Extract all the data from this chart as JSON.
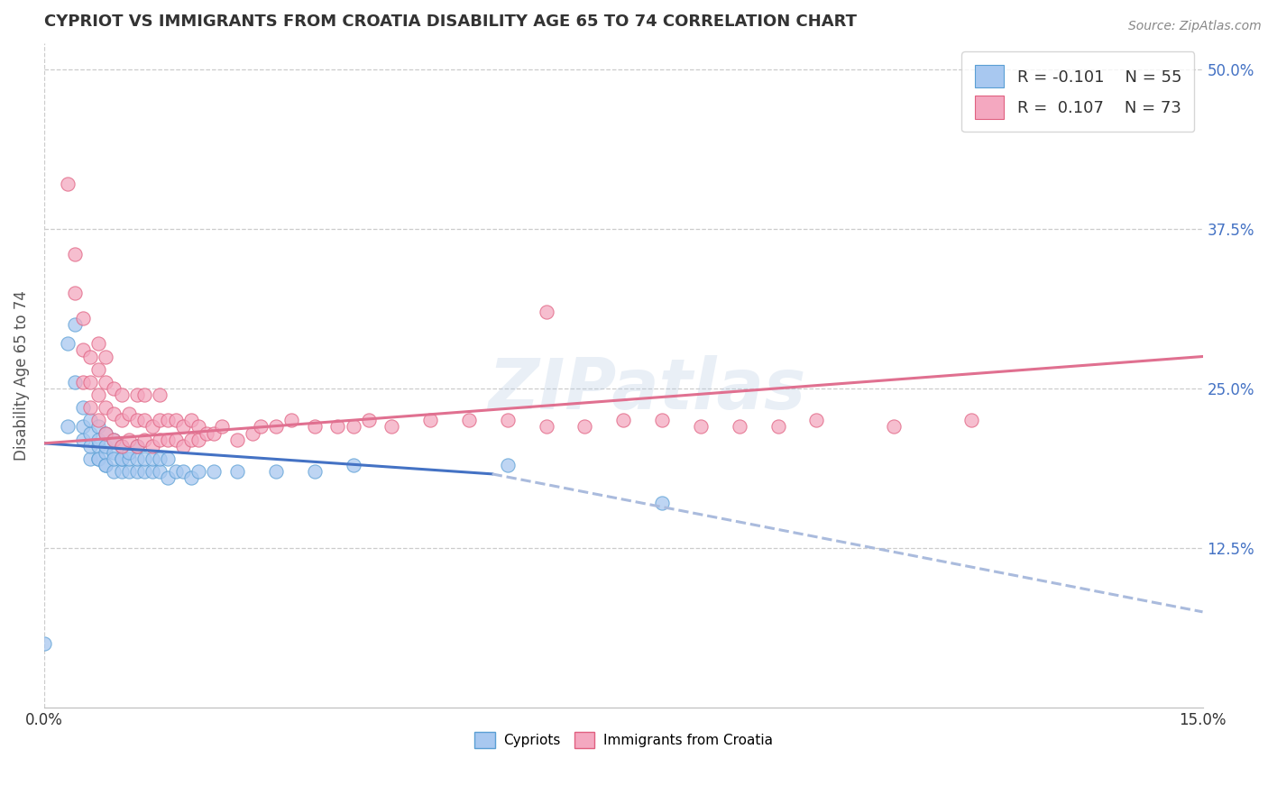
{
  "title": "CYPRIOT VS IMMIGRANTS FROM CROATIA DISABILITY AGE 65 TO 74 CORRELATION CHART",
  "source": "Source: ZipAtlas.com",
  "ylabel": "Disability Age 65 to 74",
  "xlim": [
    0.0,
    0.15
  ],
  "ylim": [
    0.0,
    0.52
  ],
  "y_ticks": [
    0.125,
    0.25,
    0.375,
    0.5
  ],
  "y_tick_labels": [
    "12.5%",
    "25.0%",
    "37.5%",
    "50.0%"
  ],
  "watermark": "ZIPatlas",
  "legend_r1": "R = -0.101",
  "legend_n1": "N = 55",
  "legend_r2": "R =  0.107",
  "legend_n2": "N = 73",
  "cypriot_color": "#a8c8f0",
  "cypriot_edge": "#5a9fd4",
  "croatia_color": "#f4a8c0",
  "croatia_edge": "#e06080",
  "trend_cypriot_color": "#4472c4",
  "trend_croatia_color": "#e07090",
  "trend_dashed_color": "#aabbdd",
  "cypriot_x": [
    0.0,
    0.003,
    0.003,
    0.004,
    0.004,
    0.005,
    0.005,
    0.005,
    0.006,
    0.006,
    0.006,
    0.006,
    0.007,
    0.007,
    0.007,
    0.007,
    0.007,
    0.008,
    0.008,
    0.008,
    0.008,
    0.008,
    0.009,
    0.009,
    0.009,
    0.009,
    0.01,
    0.01,
    0.01,
    0.01,
    0.011,
    0.011,
    0.011,
    0.012,
    0.012,
    0.012,
    0.013,
    0.013,
    0.014,
    0.014,
    0.015,
    0.015,
    0.016,
    0.016,
    0.017,
    0.018,
    0.019,
    0.02,
    0.022,
    0.025,
    0.03,
    0.035,
    0.04,
    0.06,
    0.08
  ],
  "cypriot_y": [
    0.05,
    0.22,
    0.285,
    0.3,
    0.255,
    0.21,
    0.235,
    0.22,
    0.195,
    0.215,
    0.225,
    0.205,
    0.195,
    0.205,
    0.22,
    0.21,
    0.195,
    0.19,
    0.2,
    0.215,
    0.205,
    0.19,
    0.185,
    0.2,
    0.21,
    0.195,
    0.185,
    0.195,
    0.205,
    0.195,
    0.185,
    0.195,
    0.2,
    0.185,
    0.195,
    0.205,
    0.185,
    0.195,
    0.185,
    0.195,
    0.185,
    0.195,
    0.18,
    0.195,
    0.185,
    0.185,
    0.18,
    0.185,
    0.185,
    0.185,
    0.185,
    0.185,
    0.19,
    0.19,
    0.16
  ],
  "croatia_x": [
    0.003,
    0.004,
    0.004,
    0.005,
    0.005,
    0.005,
    0.006,
    0.006,
    0.006,
    0.007,
    0.007,
    0.007,
    0.007,
    0.008,
    0.008,
    0.008,
    0.008,
    0.009,
    0.009,
    0.009,
    0.01,
    0.01,
    0.01,
    0.011,
    0.011,
    0.012,
    0.012,
    0.012,
    0.013,
    0.013,
    0.013,
    0.014,
    0.014,
    0.015,
    0.015,
    0.015,
    0.016,
    0.016,
    0.017,
    0.017,
    0.018,
    0.018,
    0.019,
    0.019,
    0.02,
    0.02,
    0.021,
    0.022,
    0.023,
    0.025,
    0.027,
    0.028,
    0.03,
    0.032,
    0.035,
    0.038,
    0.04,
    0.042,
    0.045,
    0.05,
    0.055,
    0.06,
    0.065,
    0.07,
    0.075,
    0.08,
    0.085,
    0.09,
    0.095,
    0.1,
    0.11,
    0.12,
    0.065
  ],
  "croatia_y": [
    0.41,
    0.325,
    0.355,
    0.255,
    0.28,
    0.305,
    0.235,
    0.255,
    0.275,
    0.225,
    0.245,
    0.265,
    0.285,
    0.215,
    0.235,
    0.255,
    0.275,
    0.21,
    0.23,
    0.25,
    0.205,
    0.225,
    0.245,
    0.21,
    0.23,
    0.205,
    0.225,
    0.245,
    0.21,
    0.225,
    0.245,
    0.205,
    0.22,
    0.21,
    0.225,
    0.245,
    0.21,
    0.225,
    0.21,
    0.225,
    0.205,
    0.22,
    0.21,
    0.225,
    0.21,
    0.22,
    0.215,
    0.215,
    0.22,
    0.21,
    0.215,
    0.22,
    0.22,
    0.225,
    0.22,
    0.22,
    0.22,
    0.225,
    0.22,
    0.225,
    0.225,
    0.225,
    0.22,
    0.22,
    0.225,
    0.225,
    0.22,
    0.22,
    0.22,
    0.225,
    0.22,
    0.225,
    0.31
  ],
  "trend_solid_x1": 0.0,
  "trend_solid_x2": 0.058,
  "trend_cyp_y1": 0.207,
  "trend_cyp_y2": 0.183,
  "trend_croa_y1": 0.207,
  "trend_croa_y2": 0.275,
  "trend_dash_x1": 0.058,
  "trend_dash_x2": 0.15,
  "trend_dash_y1": 0.183,
  "trend_dash_y2": 0.075,
  "bg_color": "#ffffff",
  "grid_color": "#cccccc"
}
